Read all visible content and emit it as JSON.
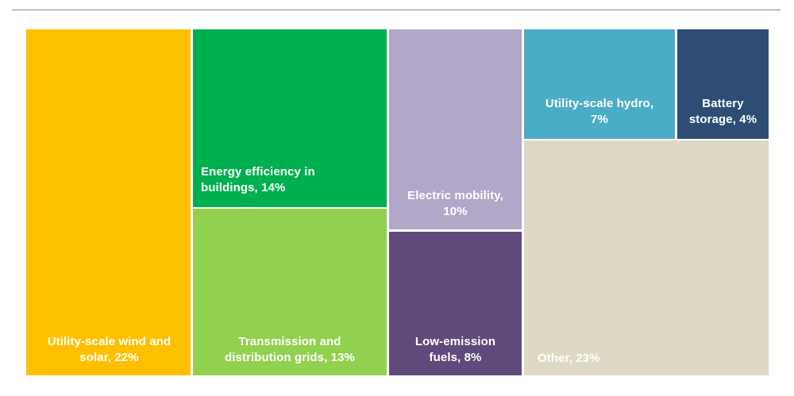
{
  "chart_data": {
    "type": "treemap",
    "title": "",
    "unit": "%",
    "segments": [
      {
        "key": "wind_solar",
        "label": "Utility-scale wind and\nsolar, 22%",
        "value": 22,
        "color": "#FFC000"
      },
      {
        "key": "efficiency_buildings",
        "label": "Energy efficiency in\nbuildings, 14%",
        "value": 14,
        "color": "#00B050"
      },
      {
        "key": "grids",
        "label": "Transmission and\ndistribution grids, 13%",
        "value": 13,
        "color": "#92D050"
      },
      {
        "key": "electric_mobility",
        "label": "Electric mobility,\n10%",
        "value": 10,
        "color": "#B1A7C9"
      },
      {
        "key": "low_emission_fuels",
        "label": "Low-emission\nfuels, 8%",
        "value": 8,
        "color": "#604A7B"
      },
      {
        "key": "hydro",
        "label": "Utility-scale hydro,\n7%",
        "value": 7,
        "color": "#4BACC6"
      },
      {
        "key": "battery_storage",
        "label": "Battery\nstorage, 4%",
        "value": 4,
        "color": "#2E4D74"
      },
      {
        "key": "other",
        "label": "Other, 23%",
        "value": 23,
        "color": "#DDD9C4"
      }
    ]
  }
}
